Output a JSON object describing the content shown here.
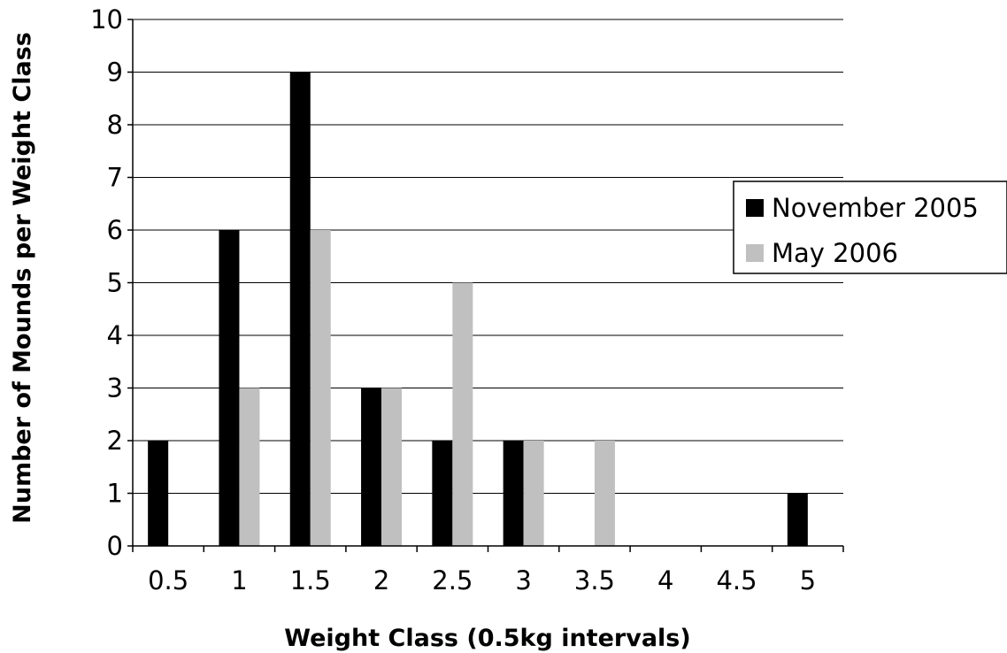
{
  "chart_data": {
    "type": "bar",
    "title": "",
    "xlabel": "Weight Class (0.5kg intervals)",
    "ylabel": "Number of Mounds per Weight Class",
    "categories": [
      "0.5",
      "1",
      "1.5",
      "2",
      "2.5",
      "3",
      "3.5",
      "4",
      "4.5",
      "5"
    ],
    "series": [
      {
        "name": "November 2005",
        "color": "#000000",
        "values": [
          2,
          6,
          9,
          3,
          2,
          2,
          0,
          0,
          0,
          1
        ]
      },
      {
        "name": "May 2006",
        "color": "#c0c0c0",
        "values": [
          0,
          3,
          6,
          3,
          5,
          2,
          2,
          0,
          0,
          0
        ]
      }
    ],
    "ylim": [
      0,
      10
    ],
    "yticks": [
      0,
      1,
      2,
      3,
      4,
      5,
      6,
      7,
      8,
      9,
      10
    ],
    "grid": true,
    "legend_position": "right"
  }
}
